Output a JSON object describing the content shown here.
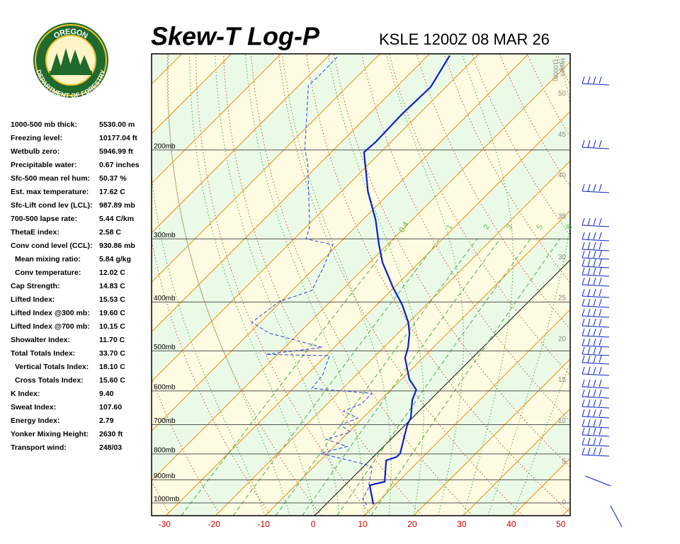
{
  "logo": {
    "top": "OREGON",
    "bottom": "DEPARTMENT OF FORESTRY"
  },
  "stats": [
    {
      "label": "1000-500 mb thick:",
      "value": "5530.00 m"
    },
    {
      "label": "Freezing level:",
      "value": "10177.04 ft"
    },
    {
      "label": "Wetbulb zero:",
      "value": "5946.99 ft"
    },
    {
      "label": "Precipitable water:",
      "value": "0.67 inches"
    },
    {
      "label": "Sfc-500 mean rel hum:",
      "value": "50.37 %"
    },
    {
      "label": "Est. max temperature:",
      "value": "17.62 C"
    },
    {
      "label": "Sfc-Lift cond lev (LCL):",
      "value": "987.89 mb"
    },
    {
      "label": "700-500 lapse rate:",
      "value": "5.44 C/km"
    },
    {
      "label": "ThetaE index:",
      "value": "2.58 C"
    },
    {
      "label": "Conv cond level (CCL):",
      "value": "930.86 mb"
    },
    {
      "label": "Mean mixing ratio:",
      "value": "5.84 g/kg",
      "indent": true
    },
    {
      "label": "Conv temperature:",
      "value": "12.02 C",
      "indent": true
    },
    {
      "label": "Cap Strength:",
      "value": "14.83 C"
    },
    {
      "label": "Lifted Index:",
      "value": "15.53 C"
    },
    {
      "label": "Lifted Index @300 mb:",
      "value": "19.60 C"
    },
    {
      "label": "Lifted Index @700 mb:",
      "value": "10.15 C"
    },
    {
      "label": "Showalter Index:",
      "value": "11.70 C"
    },
    {
      "label": "Total Totals Index:",
      "value": "33.70 C"
    },
    {
      "label": "Vertical Totals Index:",
      "value": "18.10 C",
      "indent": true
    },
    {
      "label": "Cross Totals Index:",
      "value": "15.60 C",
      "indent": true
    },
    {
      "label": "K Index:",
      "value": "9.40"
    },
    {
      "label": "Sweat Index:",
      "value": "107.60"
    },
    {
      "label": "Energy Index:",
      "value": "2.79"
    },
    {
      "label": "Yonker Mixing Height:",
      "value": "2630 ft"
    },
    {
      "label": "Transport wind:",
      "value": "248/03"
    }
  ],
  "chart_data": {
    "type": "skewt",
    "title": "Skew-T Log-P",
    "subtitle": "KSLE 1200Z 08 MAR 26",
    "xlim": [
      -32.9,
      51.6
    ],
    "xticks": [
      -30,
      -20,
      -10,
      0,
      10,
      20,
      30,
      40,
      50
    ],
    "ylim": [
      1060,
      129
    ],
    "log": true,
    "yticks": [
      {
        "value": 200,
        "label": "200mb"
      },
      {
        "value": 300,
        "label": "300mb"
      },
      {
        "value": 400,
        "label": "400mb"
      },
      {
        "value": 500,
        "label": "500mb"
      },
      {
        "value": 600,
        "label": "600mb"
      },
      {
        "value": 700,
        "label": "700mb"
      },
      {
        "value": 800,
        "label": "800mb"
      },
      {
        "value": 900,
        "label": "900mb"
      },
      {
        "value": 1000,
        "label": "1000mb"
      }
    ],
    "y2label": "Height",
    "y2unit": "(1000ft)",
    "y2lim": [
      -1.6,
      54.9
    ],
    "y2ticks": [
      0,
      5,
      10,
      15,
      20,
      25,
      30,
      35,
      40,
      45,
      50
    ],
    "mixing_ratio_labels": [
      {
        "value": 0.4,
        "label": "0.4"
      },
      1,
      2,
      3,
      5,
      8
    ],
    "series": [
      {
        "color": "#0a1fcc",
        "dash": false,
        "pressure": [
          1007,
          923,
          917,
          908,
          824,
          811,
          798,
          701,
          679,
          626,
          597,
          569,
          516,
          492,
          461,
          439,
          405,
          374,
          334,
          308,
          275,
          242,
          202,
          193,
          170,
          150,
          130
        ],
        "values": [
          9.6,
          5.0,
          5.9,
          7.3,
          3.3,
          4.7,
          4.7,
          0.4,
          -0.3,
          -3.6,
          -4.9,
          -8.4,
          -13.6,
          -15.1,
          -17.7,
          -20.1,
          -24.9,
          -30.3,
          -37.4,
          -41.7,
          -47.4,
          -54.6,
          -63.4,
          -63.1,
          -63.4,
          -63.1,
          -65.6
        ]
      },
      {
        "color": "#2a3fdd",
        "dash": true,
        "pressure": [
          1010,
          984,
          938,
          851,
          838,
          798,
          773,
          748,
          724,
          701,
          679,
          658,
          637,
          607,
          593,
          559,
          511,
          508,
          492,
          461,
          439,
          399,
          380,
          345,
          308,
          300,
          284,
          213,
          199,
          149,
          144,
          130
        ],
        "values": [
          8.4,
          6.4,
          5.4,
          1.9,
          -0.3,
          -11.4,
          -7.4,
          -13.1,
          -9.6,
          -13.1,
          -11.0,
          -15.3,
          -13.1,
          -13.1,
          -26.3,
          -26.7,
          -29.3,
          -42.4,
          -32.4,
          -46.0,
          -51.7,
          -50.3,
          -46.0,
          -48.1,
          -51.0,
          -57.6,
          -59.3,
          -72.4,
          -76.0,
          -88.1,
          -87.9,
          -88.0
        ]
      }
    ]
  }
}
